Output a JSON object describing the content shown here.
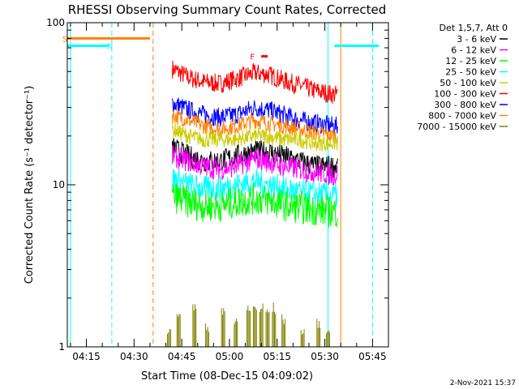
{
  "chart_data": {
    "type": "line",
    "title": "RHESSI Observing Summary Count Rates, Corrected",
    "ylabel": "Corrected Count Rate (s⁻¹ detector⁻¹)",
    "xlabel": "Start Time (08-Dec-15 04:09:02)",
    "footer_date": "2-Nov-2021 15:37",
    "y_scale": "log",
    "ylim": [
      1,
      100
    ],
    "y_ticks": [
      {
        "value": 1,
        "label": "1"
      },
      {
        "value": 10,
        "label": "10"
      },
      {
        "value": 100,
        "label": "100"
      }
    ],
    "xlim": [
      "04:09",
      "05:50"
    ],
    "x_ticks": [
      "04:15",
      "04:30",
      "04:45",
      "05:00",
      "05:15",
      "05:30",
      "05:45"
    ],
    "legend": {
      "placement": "right",
      "header": "Det 1,5,7, Att 0",
      "entries": [
        {
          "label": "3 - 6 keV",
          "color": "#000000"
        },
        {
          "label": "6 - 12 keV",
          "color": "#ff00ff"
        },
        {
          "label": "12 - 25 keV",
          "color": "#00ff00"
        },
        {
          "label": "25 - 50 keV",
          "color": "#00ffff"
        },
        {
          "label": "50 - 100 keV",
          "color": "#cccc00"
        },
        {
          "label": "100 - 300 keV",
          "color": "#ff0000"
        },
        {
          "label": "300 - 800 keV",
          "color": "#0000ff"
        },
        {
          "label": "800 - 7000 keV",
          "color": "#ff8000"
        },
        {
          "label": "7000 - 15000 keV",
          "color": "#808000"
        }
      ]
    },
    "series": [
      {
        "name": "100 - 300 keV",
        "color": "#ff0000",
        "start": "04:42",
        "end": "05:34",
        "points": [
          [
            "04:42",
            52
          ],
          [
            "04:47",
            46
          ],
          [
            "04:52",
            43
          ],
          [
            "04:57",
            42
          ],
          [
            "05:02",
            45
          ],
          [
            "05:08",
            49
          ],
          [
            "05:12",
            48
          ],
          [
            "05:17",
            44
          ],
          [
            "05:22",
            41
          ],
          [
            "05:27",
            38
          ],
          [
            "05:33",
            36
          ]
        ],
        "noise": 0.06
      },
      {
        "name": "300 - 800 keV",
        "color": "#0000ff",
        "start": "04:42",
        "end": "05:34",
        "points": [
          [
            "04:42",
            32
          ],
          [
            "04:47",
            29
          ],
          [
            "04:52",
            27
          ],
          [
            "04:57",
            26
          ],
          [
            "05:02",
            27
          ],
          [
            "05:08",
            30
          ],
          [
            "05:12",
            29
          ],
          [
            "05:17",
            27
          ],
          [
            "05:22",
            25
          ],
          [
            "05:27",
            24
          ],
          [
            "05:33",
            23
          ]
        ],
        "noise": 0.06
      },
      {
        "name": "800 - 7000 keV",
        "color": "#ff8000",
        "start": "04:42",
        "end": "05:34",
        "points": [
          [
            "04:42",
            27
          ],
          [
            "04:47",
            25
          ],
          [
            "04:52",
            23
          ],
          [
            "04:57",
            22
          ],
          [
            "05:02",
            23
          ],
          [
            "05:08",
            25
          ],
          [
            "05:12",
            24
          ],
          [
            "05:17",
            23
          ],
          [
            "05:22",
            22
          ],
          [
            "05:27",
            21
          ],
          [
            "05:33",
            20
          ]
        ],
        "noise": 0.05
      },
      {
        "name": "50 - 100 keV",
        "color": "#cccc00",
        "start": "04:42",
        "end": "05:34",
        "points": [
          [
            "04:42",
            22
          ],
          [
            "04:47",
            20
          ],
          [
            "04:52",
            19
          ],
          [
            "04:57",
            19
          ],
          [
            "05:02",
            19
          ],
          [
            "05:08",
            20
          ],
          [
            "05:12",
            20
          ],
          [
            "05:17",
            19
          ],
          [
            "05:22",
            19
          ],
          [
            "05:27",
            18
          ],
          [
            "05:33",
            18
          ]
        ],
        "noise": 0.05
      },
      {
        "name": "3 - 6 keV",
        "color": "#000000",
        "start": "04:42",
        "end": "05:34",
        "points": [
          [
            "04:42",
            17
          ],
          [
            "04:47",
            15
          ],
          [
            "04:52",
            14
          ],
          [
            "04:57",
            14
          ],
          [
            "05:02",
            15
          ],
          [
            "05:08",
            16
          ],
          [
            "05:12",
            16
          ],
          [
            "05:17",
            15
          ],
          [
            "05:22",
            14
          ],
          [
            "05:27",
            13
          ],
          [
            "05:33",
            13
          ]
        ],
        "noise": 0.07
      },
      {
        "name": "6 - 12 keV",
        "color": "#ff00ff",
        "start": "04:42",
        "end": "05:34",
        "points": [
          [
            "04:42",
            15
          ],
          [
            "04:47",
            14
          ],
          [
            "04:52",
            13
          ],
          [
            "04:57",
            12.5
          ],
          [
            "05:02",
            13
          ],
          [
            "05:08",
            14.5
          ],
          [
            "05:12",
            14
          ],
          [
            "05:17",
            13
          ],
          [
            "05:22",
            12.5
          ],
          [
            "05:27",
            12
          ],
          [
            "05:33",
            11.5
          ]
        ],
        "noise": 0.07
      },
      {
        "name": "25 - 50 keV",
        "color": "#00ffff",
        "start": "04:42",
        "end": "05:34",
        "points": [
          [
            "04:42",
            11
          ],
          [
            "04:47",
            10
          ],
          [
            "04:52",
            9.5
          ],
          [
            "04:57",
            9.5
          ],
          [
            "05:02",
            10
          ],
          [
            "05:08",
            10.5
          ],
          [
            "05:12",
            10
          ],
          [
            "05:17",
            9.5
          ],
          [
            "05:22",
            9
          ],
          [
            "05:27",
            8.8
          ],
          [
            "05:33",
            8.5
          ]
        ],
        "noise": 0.08
      },
      {
        "name": "12 - 25 keV",
        "color": "#00ff00",
        "start": "04:42",
        "end": "05:34",
        "points": [
          [
            "04:42",
            8.5
          ],
          [
            "04:47",
            7.8
          ],
          [
            "04:52",
            7.4
          ],
          [
            "04:57",
            7.4
          ],
          [
            "05:02",
            7.8
          ],
          [
            "05:08",
            8.2
          ],
          [
            "05:12",
            8
          ],
          [
            "05:17",
            7.5
          ],
          [
            "05:22",
            7.2
          ],
          [
            "05:27",
            7
          ],
          [
            "05:33",
            6.8
          ]
        ],
        "noise": 0.1
      },
      {
        "name": "7000 - 15000 keV",
        "color": "#808000",
        "start": "04:42",
        "end": "05:34",
        "points": [
          [
            "04:42",
            1
          ],
          [
            "05:33",
            1
          ]
        ],
        "noise": 0.0,
        "spikes": [
          [
            "04:41",
            1.3
          ],
          [
            "04:44",
            1.8
          ],
          [
            "04:49",
            1.9
          ],
          [
            "04:53",
            1.4
          ],
          [
            "04:58",
            1.9
          ],
          [
            "05:02",
            1.5
          ],
          [
            "05:06",
            1.9
          ],
          [
            "05:08",
            1.9
          ],
          [
            "05:10",
            1.9
          ],
          [
            "05:12",
            1.8
          ],
          [
            "05:14",
            1.9
          ],
          [
            "05:17",
            1.6
          ],
          [
            "05:23",
            1.3
          ],
          [
            "05:28",
            1.5
          ],
          [
            "05:31",
            1.3
          ]
        ]
      }
    ],
    "markers": [
      {
        "label": "S",
        "color": "#ff8000",
        "x_start": "04:09",
        "x_end": "04:35",
        "level": 80,
        "label_at": "04:09"
      },
      {
        "label": "N",
        "color": "#00ffff",
        "x_start": "04:09",
        "x_end": "04:22",
        "level": 72,
        "label_at": "04:23"
      },
      {
        "label": "",
        "color": "#00ffff",
        "x_start": "05:33",
        "x_end": "05:47",
        "level": 72,
        "label_at": ""
      },
      {
        "label": "F",
        "color": "#ff0000",
        "x_start": "05:10",
        "x_end": "05:12",
        "level": 62,
        "label_at": "05:08"
      }
    ],
    "vlines": [
      {
        "x": "04:10",
        "color": "#00ffff",
        "style": "solid"
      },
      {
        "x": "04:23",
        "color": "#00ffff",
        "style": "dashed"
      },
      {
        "x": "04:36",
        "color": "#ff8000",
        "style": "dashed"
      },
      {
        "x": "05:31",
        "color": "#00ffff",
        "style": "solid"
      },
      {
        "x": "05:35",
        "color": "#ff8000",
        "style": "solid"
      },
      {
        "x": "05:45",
        "color": "#00ffff",
        "style": "dashed"
      }
    ]
  }
}
